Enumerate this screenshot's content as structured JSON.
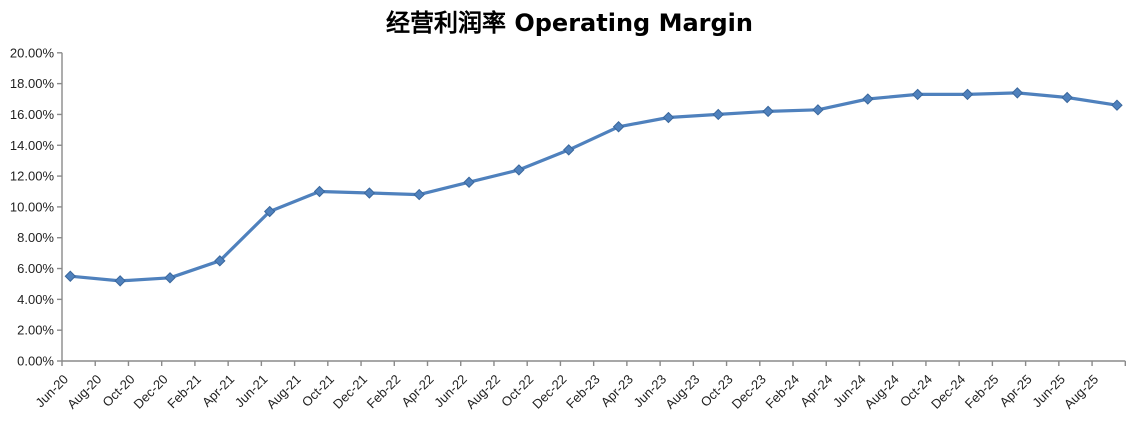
{
  "chart_data": {
    "type": "line",
    "title": "经营利润率 Operating Margin",
    "grid": false,
    "legend": false,
    "marker": "diamond",
    "colors": {
      "series": "#4F81BD",
      "marker_border": "#3A679C",
      "axis": "#8A8A8A",
      "tick_label": "#1F1F1F",
      "title": "#000000",
      "background": "#FFFFFF"
    },
    "y_axis": {
      "min": 0,
      "max": 20,
      "step": 2,
      "unit": "%",
      "tick_labels": [
        "0.00%",
        "2.00%",
        "4.00%",
        "6.00%",
        "8.00%",
        "10.00%",
        "12.00%",
        "14.00%",
        "16.00%",
        "18.00%",
        "20.00%"
      ]
    },
    "x_axis": {
      "tick_step_months": 2,
      "total_months": 64,
      "tick_labels": [
        "Jun-20",
        "Aug-20",
        "Oct-20",
        "Dec-20",
        "Feb-21",
        "Apr-21",
        "Jun-21",
        "Aug-21",
        "Oct-21",
        "Dec-21",
        "Feb-22",
        "Apr-22",
        "Jun-22",
        "Aug-22",
        "Oct-22",
        "Dec-22",
        "Feb-23",
        "Apr-23",
        "Jun-23",
        "Aug-23",
        "Oct-23",
        "Dec-23",
        "Feb-24",
        "Apr-24",
        "Jun-24",
        "Aug-24",
        "Oct-24",
        "Dec-24",
        "Feb-25",
        "Apr-25",
        "Jun-25",
        "Aug-25"
      ]
    },
    "series": [
      {
        "x": [
          "Jun-20",
          "Sep-20",
          "Dec-20",
          "Mar-21",
          "Jun-21",
          "Sep-21",
          "Dec-21",
          "Mar-22",
          "Jun-22",
          "Sep-22",
          "Dec-22",
          "Mar-23",
          "Jun-23",
          "Sep-23",
          "Dec-23",
          "Mar-24",
          "Jun-24",
          "Sep-24",
          "Dec-24",
          "Mar-25",
          "Jun-25",
          "Sep-25"
        ],
        "x_month_offsets": [
          0,
          3,
          6,
          9,
          12,
          15,
          18,
          21,
          24,
          27,
          30,
          33,
          36,
          39,
          42,
          45,
          48,
          51,
          54,
          57,
          60,
          63
        ],
        "values": [
          5.5,
          5.2,
          5.4,
          6.5,
          9.7,
          11.0,
          10.9,
          10.8,
          11.6,
          12.4,
          13.7,
          15.2,
          15.8,
          16.0,
          16.2,
          16.3,
          17.0,
          17.3,
          17.3,
          17.4,
          17.1,
          16.6
        ]
      }
    ]
  }
}
